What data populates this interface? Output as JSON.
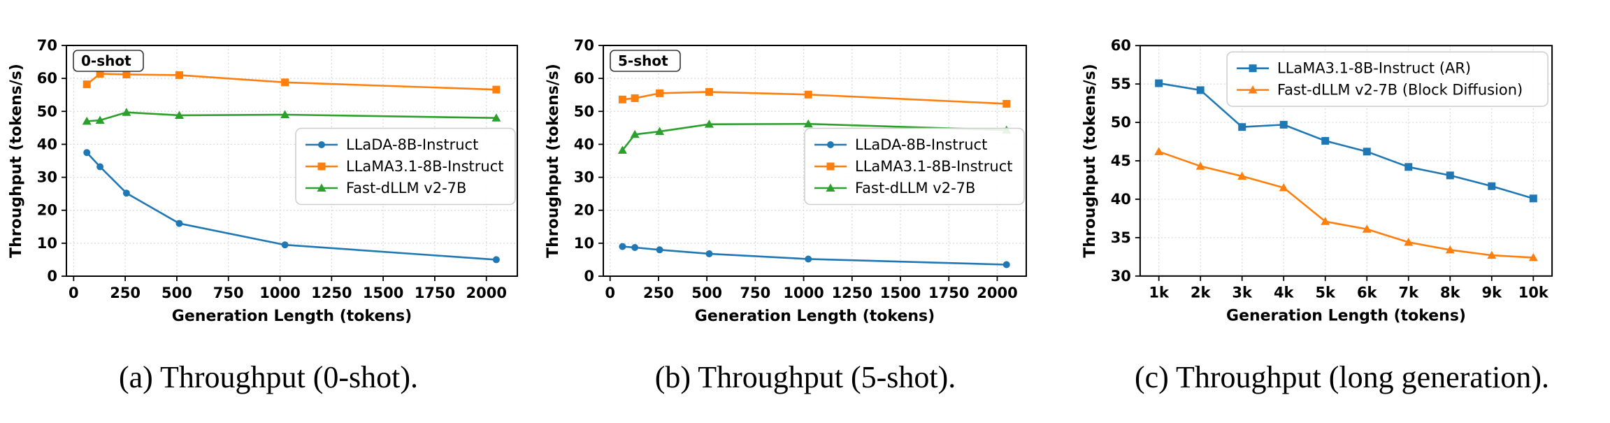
{
  "figure": {
    "background": "#ffffff"
  },
  "colors": {
    "axis": "#000000",
    "grid": "#d9d9d9",
    "legend_border": "#cccccc",
    "series_blue": "#1f77b4",
    "series_orange": "#ff7f0e",
    "series_green": "#2ca02c"
  },
  "captions": {
    "a": "(a) Throughput (0-shot).",
    "b": "(b) Throughput (5-shot).",
    "c": "(c) Throughput (long generation)."
  },
  "chart_data": [
    {
      "id": "a",
      "type": "line",
      "shot_label": "0-shot",
      "xlabel": "Generation Length (tokens)",
      "ylabel": "Throughput (tokens/s)",
      "x": [
        64,
        128,
        256,
        512,
        1024,
        2048
      ],
      "xlim": [
        -35,
        2150
      ],
      "xticks": [
        0,
        250,
        500,
        750,
        1000,
        1250,
        1500,
        1750,
        2000
      ],
      "xtick_labels": [
        "0",
        "250",
        "500",
        "750",
        "1000",
        "1250",
        "1500",
        "1750",
        "2000"
      ],
      "ylim": [
        0,
        70
      ],
      "yticks": [
        0,
        10,
        20,
        30,
        40,
        50,
        60,
        70
      ],
      "ytick_labels": [
        "0",
        "10",
        "20",
        "30",
        "40",
        "50",
        "60",
        "70"
      ],
      "grid": true,
      "legend": {
        "position": "center-right"
      },
      "series": [
        {
          "name": "LLaDA-8B-Instruct",
          "color": "#1f77b4",
          "marker": "circle",
          "values": [
            37.5,
            33.2,
            25.2,
            16.0,
            9.5,
            5.0
          ]
        },
        {
          "name": "LLaMA3.1-8B-Instruct",
          "color": "#ff7f0e",
          "marker": "square",
          "values": [
            58.2,
            61.4,
            61.2,
            61.0,
            58.8,
            56.6
          ]
        },
        {
          "name": "Fast-dLLM v2-7B",
          "color": "#2ca02c",
          "marker": "triangle",
          "values": [
            47.0,
            47.3,
            49.7,
            48.8,
            49.0,
            48.0
          ]
        }
      ]
    },
    {
      "id": "b",
      "type": "line",
      "shot_label": "5-shot",
      "xlabel": "Generation Length (tokens)",
      "ylabel": "Throughput (tokens/s)",
      "x": [
        64,
        128,
        256,
        512,
        1024,
        2048
      ],
      "xlim": [
        -35,
        2150
      ],
      "xticks": [
        0,
        250,
        500,
        750,
        1000,
        1250,
        1500,
        1750,
        2000
      ],
      "xtick_labels": [
        "0",
        "250",
        "500",
        "750",
        "1000",
        "1250",
        "1500",
        "1750",
        "2000"
      ],
      "ylim": [
        0,
        70
      ],
      "yticks": [
        0,
        10,
        20,
        30,
        40,
        50,
        60,
        70
      ],
      "ytick_labels": [
        "0",
        "10",
        "20",
        "30",
        "40",
        "50",
        "60",
        "70"
      ],
      "grid": true,
      "legend": {
        "position": "center-right"
      },
      "series": [
        {
          "name": "LLaDA-8B-Instruct",
          "color": "#1f77b4",
          "marker": "circle",
          "values": [
            9.0,
            8.7,
            8.0,
            6.8,
            5.2,
            3.5
          ]
        },
        {
          "name": "LLaMA3.1-8B-Instruct",
          "color": "#ff7f0e",
          "marker": "square",
          "values": [
            53.6,
            54.0,
            55.5,
            55.9,
            55.1,
            52.3
          ]
        },
        {
          "name": "Fast-dLLM v2-7B",
          "color": "#2ca02c",
          "marker": "triangle",
          "values": [
            38.2,
            43.0,
            43.9,
            46.1,
            46.2,
            44.3
          ]
        }
      ]
    },
    {
      "id": "c",
      "type": "line",
      "shot_label": null,
      "xlabel": "Generation Length (tokens)",
      "ylabel": "Throughput (tokens/s)",
      "x": [
        1,
        2,
        3,
        4,
        5,
        6,
        7,
        8,
        9,
        10
      ],
      "xlim": [
        0.55,
        10.45
      ],
      "xticks": [
        1,
        2,
        3,
        4,
        5,
        6,
        7,
        8,
        9,
        10
      ],
      "xtick_labels": [
        "1k",
        "2k",
        "3k",
        "4k",
        "5k",
        "6k",
        "7k",
        "8k",
        "9k",
        "10k"
      ],
      "ylim": [
        30,
        60
      ],
      "yticks": [
        30,
        35,
        40,
        45,
        50,
        55,
        60
      ],
      "ytick_labels": [
        "30",
        "35",
        "40",
        "45",
        "50",
        "55",
        "60"
      ],
      "grid": true,
      "legend": {
        "position": "top-right"
      },
      "series": [
        {
          "name": "LLaMA3.1-8B-Instruct (AR)",
          "color": "#1f77b4",
          "marker": "square",
          "values": [
            55.1,
            54.2,
            49.4,
            49.7,
            47.6,
            46.2,
            44.2,
            43.1,
            41.7,
            40.1
          ]
        },
        {
          "name": "Fast-dLLM v2-7B (Block Diffusion)",
          "color": "#ff7f0e",
          "marker": "triangle",
          "values": [
            46.2,
            44.3,
            43.0,
            41.5,
            37.1,
            36.1,
            34.4,
            33.4,
            32.7,
            32.4
          ]
        }
      ]
    }
  ]
}
